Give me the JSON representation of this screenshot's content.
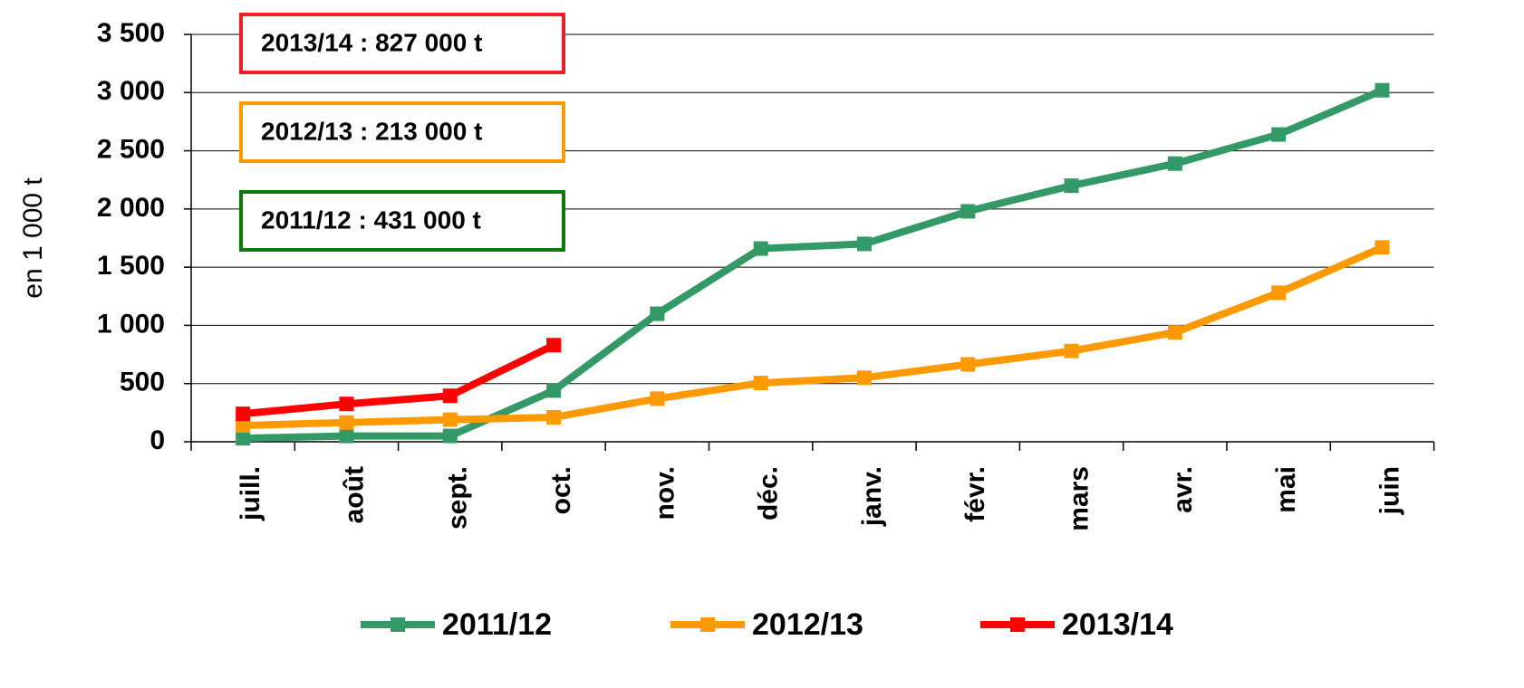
{
  "chart_data": {
    "type": "line",
    "y_axis_label": "en 1 000 t",
    "categories": [
      "juill.",
      "août",
      "sept.",
      "oct.",
      "nov.",
      "déc.",
      "janv.",
      "févr.",
      "mars",
      "avr.",
      "mai",
      "juin"
    ],
    "series": [
      {
        "name": "2011/12",
        "color": "#339966",
        "values": [
          30,
          50,
          50,
          440,
          1100,
          1660,
          1700,
          1980,
          2200,
          2390,
          2640,
          3020
        ]
      },
      {
        "name": "2012/13",
        "color": "#ff9900",
        "values": [
          140,
          165,
          190,
          210,
          370,
          505,
          550,
          665,
          780,
          940,
          1280,
          1670
        ]
      },
      {
        "name": "2013/14",
        "color": "#ff0000",
        "values": [
          240,
          325,
          395,
          830,
          null,
          null,
          null,
          null,
          null,
          null,
          null,
          null
        ]
      }
    ],
    "annotations": [
      {
        "text": "2013/14 : 827 000 t",
        "color": "#ee1c25"
      },
      {
        "text": "2012/13 : 213 000 t",
        "color": "#ff9900"
      },
      {
        "text": "2011/12 : 431 000 t",
        "color": "#0a7a0a"
      }
    ],
    "ylim": [
      0,
      3500
    ],
    "yticks": [
      0,
      500,
      {
        "value": 1000,
        "label": "1 000"
      },
      {
        "value": 1500,
        "label": "1 500"
      },
      {
        "value": 2000,
        "label": "2 000"
      },
      {
        "value": 2500,
        "label": "2 500"
      },
      {
        "value": 3000,
        "label": "3 000"
      },
      {
        "value": 3500,
        "label": "3 500"
      }
    ],
    "grid": true,
    "legend": "bottom"
  }
}
